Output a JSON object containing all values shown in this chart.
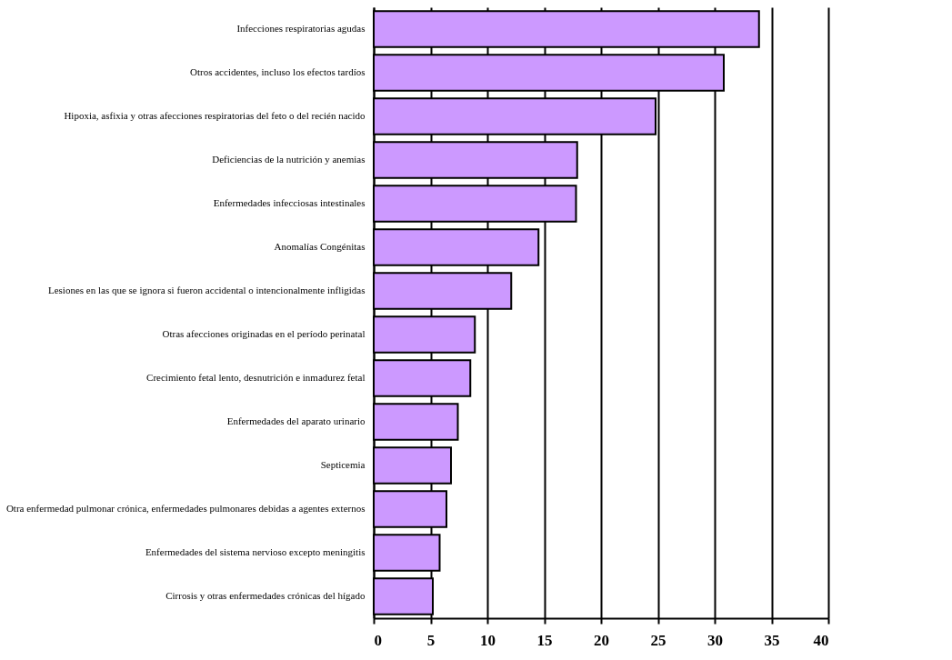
{
  "chart_data": {
    "type": "bar",
    "orientation": "horizontal",
    "categories": [
      "Infecciones respiratorias agudas",
      "Otros accidentes, incluso los efectos tardíos",
      "Hipoxia, asfixia y otras afecciones respiratorias del feto o del recién nacido",
      "Deficiencias de la nutrición y anemias",
      "Enfermedades infecciosas intestinales",
      "Anomalías Congénitas",
      "Lesiones en las que se ignora si fueron accidental o intencionalmente infligidas",
      "Otras afecciones originadas en el período perinatal",
      "Crecimiento fetal lento, desnutrición e inmadurez fetal",
      "Enfermedades del aparato urinario",
      "Septicemia",
      "Otra enfermedad pulmonar crónica, enfermedades pulmonares debidas a agentes externos",
      "Enfermedades del sistema nervioso excepto meningitis",
      "Cirrosis y otras enfermedades crónicas del hígado"
    ],
    "values": [
      33.9,
      30.8,
      24.8,
      17.9,
      17.8,
      14.5,
      12.1,
      8.9,
      8.5,
      7.4,
      6.8,
      6.4,
      5.8,
      5.2
    ],
    "color": "#cc99ff",
    "xlim": [
      0,
      40
    ],
    "xticks": [
      0,
      5,
      10,
      15,
      20,
      25,
      30,
      35,
      40
    ],
    "grid": "x"
  }
}
